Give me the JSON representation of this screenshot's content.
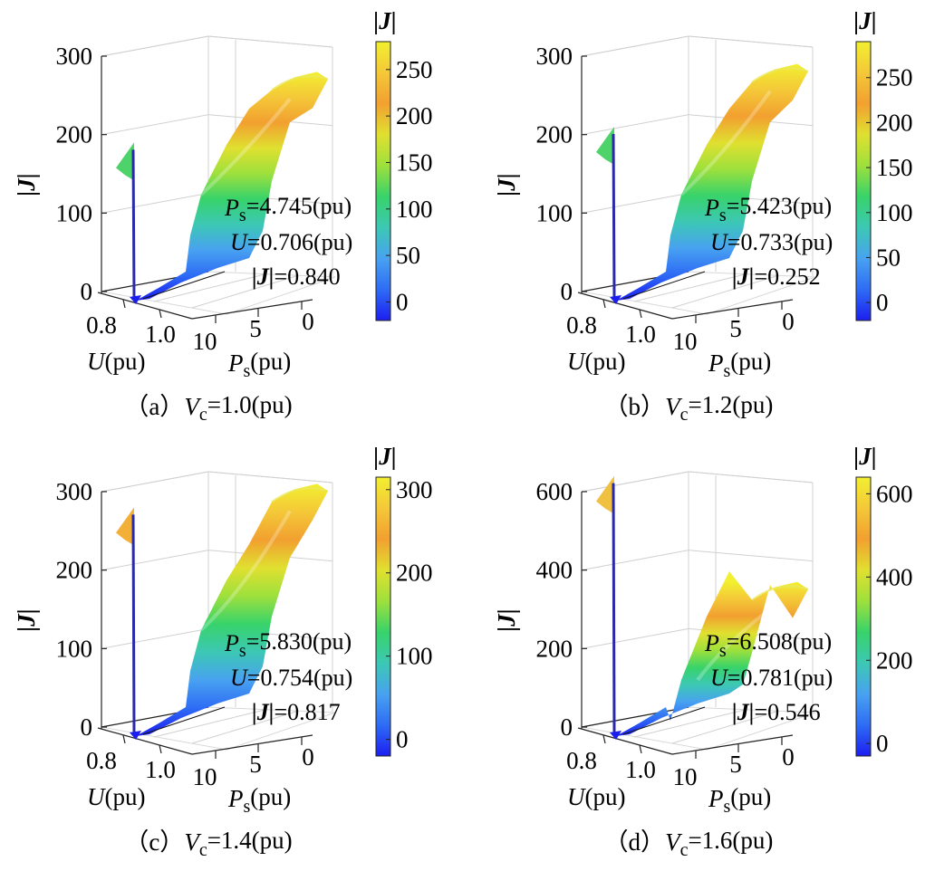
{
  "figure": {
    "colormap": [
      "#1c1ef0",
      "#2e6cf5",
      "#48a2f0",
      "#3cc8b4",
      "#38d36a",
      "#9ee03c",
      "#e0e030",
      "#f2a030",
      "#f4c838",
      "#f2f030"
    ],
    "axis_labels": {
      "u_main": "U",
      "u_unit": "(pu)",
      "p_main": "P",
      "p_sub": "s",
      "p_unit": "(pu)",
      "z_label": "|J|"
    }
  },
  "chart_data": [
    {
      "id": "a",
      "type": "surface3d",
      "caption": {
        "prefix": "（a）",
        "var": "V",
        "sub": "c",
        "value": "=1.0(pu)"
      },
      "z_ticks": [
        "0",
        "100",
        "200",
        "300"
      ],
      "z_range": [
        0,
        300
      ],
      "u_ticks": [
        "0.8",
        "1.0"
      ],
      "ps_ticks": [
        "10",
        "5",
        "0"
      ],
      "colorbar": {
        "label": "|J|",
        "ticks": [
          "0",
          "50",
          "100",
          "150",
          "200",
          "250"
        ],
        "range": [
          -20,
          280
        ]
      },
      "annotation": {
        "ps_label": "P",
        "ps_sub": "s",
        "ps_value": "=4.745(pu)",
        "u_label": "U",
        "u_value": "=0.706(pu)",
        "j_label": "|J|",
        "j_value": "=0.840"
      },
      "spike_peak": 190,
      "surface_max": 280
    },
    {
      "id": "b",
      "type": "surface3d",
      "caption": {
        "prefix": "（b）",
        "var": "V",
        "sub": "c",
        "value": "=1.2(pu)"
      },
      "z_ticks": [
        "0",
        "100",
        "200",
        "300"
      ],
      "z_range": [
        0,
        300
      ],
      "u_ticks": [
        "0.8",
        "1.0"
      ],
      "ps_ticks": [
        "10",
        "5",
        "0"
      ],
      "colorbar": {
        "label": "|J|",
        "ticks": [
          "0",
          "50",
          "100",
          "150",
          "200",
          "250"
        ],
        "range": [
          -20,
          290
        ]
      },
      "annotation": {
        "ps_label": "P",
        "ps_sub": "s",
        "ps_value": "=5.423(pu)",
        "u_label": "U",
        "u_value": "=0.733(pu)",
        "j_label": "|J|",
        "j_value": "=0.252"
      },
      "spike_peak": 210,
      "surface_max": 290
    },
    {
      "id": "c",
      "type": "surface3d",
      "caption": {
        "prefix": "（c）",
        "var": "V",
        "sub": "c",
        "value": "=1.4(pu)"
      },
      "z_ticks": [
        "0",
        "100",
        "200",
        "300"
      ],
      "z_range": [
        0,
        300
      ],
      "u_ticks": [
        "0.8",
        "1.0"
      ],
      "ps_ticks": [
        "10",
        "5",
        "0"
      ],
      "colorbar": {
        "label": "|J|",
        "ticks": [
          "0",
          "100",
          "200",
          "300"
        ],
        "range": [
          -20,
          315
        ]
      },
      "annotation": {
        "ps_label": "P",
        "ps_sub": "s",
        "ps_value": "=5.830(pu)",
        "u_label": "U",
        "u_value": "=0.754(pu)",
        "j_label": "|J|",
        "j_value": "=0.817"
      },
      "spike_peak": 280,
      "surface_max": 310
    },
    {
      "id": "d",
      "type": "surface3d",
      "caption": {
        "prefix": "（d）",
        "var": "V",
        "sub": "c",
        "value": "=1.6(pu)"
      },
      "z_ticks": [
        "0",
        "200",
        "400",
        "600"
      ],
      "z_range": [
        0,
        600
      ],
      "u_ticks": [
        "0.8",
        "1.0"
      ],
      "ps_ticks": [
        "10",
        "5",
        "0"
      ],
      "colorbar": {
        "label": "|J|",
        "ticks": [
          "0",
          "200",
          "400",
          "600"
        ],
        "range": [
          -30,
          640
        ]
      },
      "annotation": {
        "ps_label": "P",
        "ps_sub": "s",
        "ps_value": "=6.508(pu)",
        "u_label": "U",
        "u_value": "=0.781(pu)",
        "j_label": "|J|",
        "j_value": "=0.546"
      },
      "spike_peak": 640,
      "surface_max": 370
    }
  ]
}
